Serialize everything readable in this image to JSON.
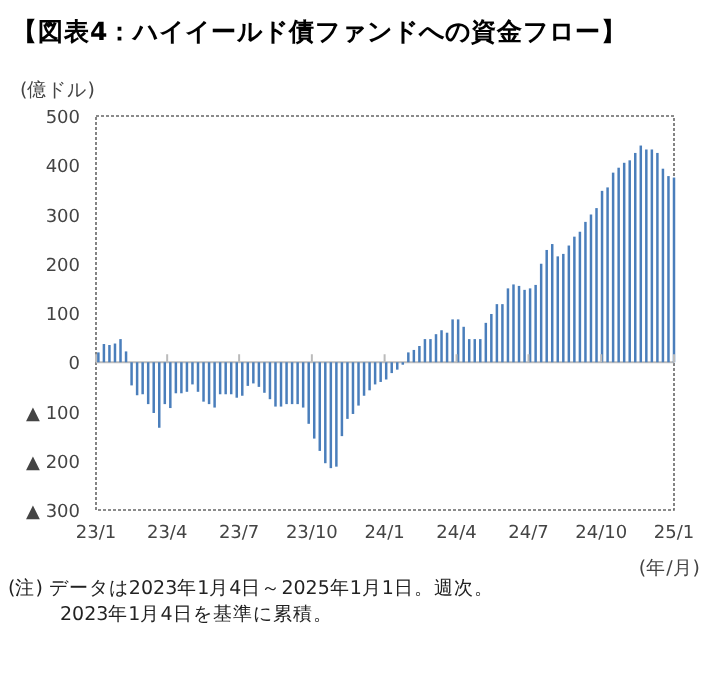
{
  "chart_data": {
    "type": "bar",
    "title": "【図表4：ハイイールド債ファンドへの資金フロー】",
    "ylabel": "(億ドル)",
    "xlabel": "(年/月)",
    "annotations": [
      "(注) データは2023年1月4日～2025年1月1日。週次。",
      "2023年1月4日を基準に累積。"
    ],
    "x": [
      "2023-01-04",
      "2023-01-11",
      "2023-01-18",
      "2023-01-25",
      "2023-02-01",
      "2023-02-08",
      "2023-02-15",
      "2023-02-22",
      "2023-03-01",
      "2023-03-08",
      "2023-03-15",
      "2023-03-22",
      "2023-03-29",
      "2023-04-05",
      "2023-04-12",
      "2023-04-19",
      "2023-04-26",
      "2023-05-03",
      "2023-05-10",
      "2023-05-17",
      "2023-05-24",
      "2023-05-31",
      "2023-06-07",
      "2023-06-14",
      "2023-06-21",
      "2023-06-28",
      "2023-07-05",
      "2023-07-12",
      "2023-07-19",
      "2023-07-26",
      "2023-08-02",
      "2023-08-09",
      "2023-08-16",
      "2023-08-23",
      "2023-08-30",
      "2023-09-06",
      "2023-09-13",
      "2023-09-20",
      "2023-09-27",
      "2023-10-04",
      "2023-10-11",
      "2023-10-18",
      "2023-10-25",
      "2023-11-01",
      "2023-11-08",
      "2023-11-15",
      "2023-11-22",
      "2023-11-29",
      "2023-12-06",
      "2023-12-13",
      "2023-12-20",
      "2023-12-27",
      "2024-01-03",
      "2024-01-10",
      "2024-01-17",
      "2024-01-24",
      "2024-01-31",
      "2024-02-07",
      "2024-02-14",
      "2024-02-21",
      "2024-02-28",
      "2024-03-06",
      "2024-03-13",
      "2024-03-20",
      "2024-03-27",
      "2024-04-03",
      "2024-04-10",
      "2024-04-17",
      "2024-04-24",
      "2024-05-01",
      "2024-05-08",
      "2024-05-15",
      "2024-05-22",
      "2024-05-29",
      "2024-06-05",
      "2024-06-12",
      "2024-06-19",
      "2024-06-26",
      "2024-07-03",
      "2024-07-10",
      "2024-07-17",
      "2024-07-24",
      "2024-07-31",
      "2024-08-07",
      "2024-08-14",
      "2024-08-21",
      "2024-08-28",
      "2024-09-04",
      "2024-09-11",
      "2024-09-18",
      "2024-09-25",
      "2024-10-02",
      "2024-10-09",
      "2024-10-16",
      "2024-10-23",
      "2024-10-30",
      "2024-11-06",
      "2024-11-13",
      "2024-11-20",
      "2024-11-27",
      "2024-12-04",
      "2024-12-11",
      "2024-12-18",
      "2024-12-25",
      "2025-01-01"
    ],
    "values": [
      20,
      37,
      35,
      38,
      47,
      22,
      -47,
      -67,
      -65,
      -85,
      -103,
      -133,
      -85,
      -93,
      -63,
      -63,
      -60,
      -45,
      -60,
      -80,
      -85,
      -92,
      -65,
      -65,
      -65,
      -72,
      -68,
      -48,
      -43,
      -50,
      -62,
      -75,
      -90,
      -90,
      -85,
      -85,
      -85,
      -92,
      -125,
      -155,
      -180,
      -205,
      -215,
      -212,
      -150,
      -115,
      -105,
      -88,
      -68,
      -57,
      -45,
      -40,
      -35,
      -22,
      -15,
      -5,
      20,
      25,
      33,
      47,
      47,
      57,
      65,
      60,
      87,
      87,
      72,
      47,
      47,
      47,
      80,
      98,
      118,
      118,
      150,
      158,
      155,
      147,
      150,
      157,
      200,
      228,
      240,
      215,
      220,
      237,
      255,
      265,
      285,
      300,
      313,
      348,
      355,
      385,
      395,
      405,
      410,
      425,
      440,
      432,
      432,
      425,
      393,
      378,
      375
    ],
    "color": "#4a7ebb",
    "xlim": [
      "2023-01-01",
      "2025-01-01"
    ],
    "xticks": [
      {
        "value": "2023-01-01",
        "label": "23/1"
      },
      {
        "value": "2023-04-01",
        "label": "23/4"
      },
      {
        "value": "2023-07-01",
        "label": "23/7"
      },
      {
        "value": "2023-10-01",
        "label": "23/10"
      },
      {
        "value": "2024-01-01",
        "label": "24/1"
      },
      {
        "value": "2024-04-01",
        "label": "24/4"
      },
      {
        "value": "2024-07-01",
        "label": "24/7"
      },
      {
        "value": "2024-10-01",
        "label": "24/10"
      },
      {
        "value": "2025-01-01",
        "label": "25/1"
      }
    ],
    "ylim": [
      -300,
      500
    ],
    "yticks": [
      500,
      400,
      300,
      200,
      100,
      0,
      {
        "value": -100,
        "label": "▲ 100"
      },
      {
        "value": -200,
        "label": "▲ 200"
      },
      {
        "value": -300,
        "label": "▲ 300"
      }
    ]
  }
}
